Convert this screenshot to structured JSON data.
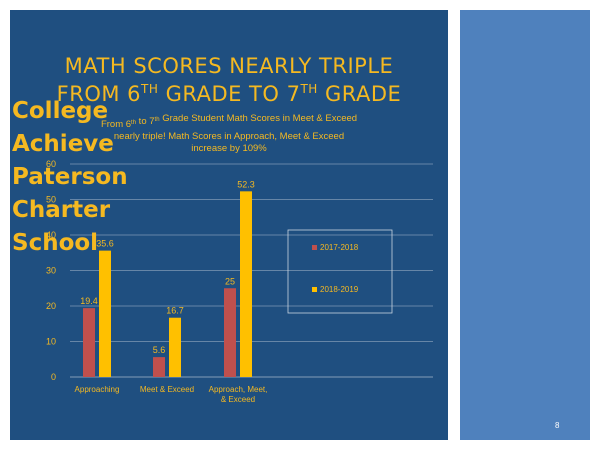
{
  "slide": {
    "title_line1": {
      "pre": "MATH SCORES NEARLY TRIPLE"
    },
    "title_line2": {
      "pre": "FROM 6",
      "sup1": "TH",
      "mid": " GRADE TO 7",
      "sup2": "TH",
      "post": " GRADE"
    },
    "side_text": [
      "College",
      "Achieve",
      "Paterson",
      "Charter",
      "School"
    ],
    "slide_number": "8",
    "colors": {
      "main_bg": "#1f4f80",
      "side_bg": "#4f81bd",
      "accent": "#f5b921",
      "series_2017": "#c0504d",
      "series_2018": "#ffc000"
    }
  },
  "chart_data": {
    "type": "bar",
    "title_lines": [
      {
        "a": "From 6",
        "sup1": "th",
        "b": " to 7",
        "sup2": "th",
        "c": " Grade Student Math Scores in  Meet & Exceed"
      },
      {
        "a": "nearly triple!  Math Scores in Approach, Meet & Exceed"
      },
      {
        "a": "increase by 109%"
      }
    ],
    "categories": [
      [
        "Approaching"
      ],
      [
        "Meet & Exceed"
      ],
      [
        "Approach, Meet,",
        "& Exceed"
      ]
    ],
    "series": [
      {
        "name": "2017-2018",
        "values": [
          19.4,
          5.6,
          25
        ],
        "labels": [
          "19.4",
          "5.6",
          "25"
        ],
        "color": "#c0504d"
      },
      {
        "name": "2018-2019",
        "values": [
          35.6,
          16.7,
          52.3
        ],
        "labels": [
          "35.6",
          "16.7",
          "52.3"
        ],
        "color": "#ffc000"
      }
    ],
    "ylim": [
      0,
      60
    ],
    "yticks": [
      0,
      10,
      20,
      30,
      40,
      50,
      60
    ],
    "ytick_labels": [
      "0",
      "10",
      "20",
      "30",
      "40",
      "50",
      "60"
    ],
    "grid": true,
    "legend_position": "right"
  }
}
